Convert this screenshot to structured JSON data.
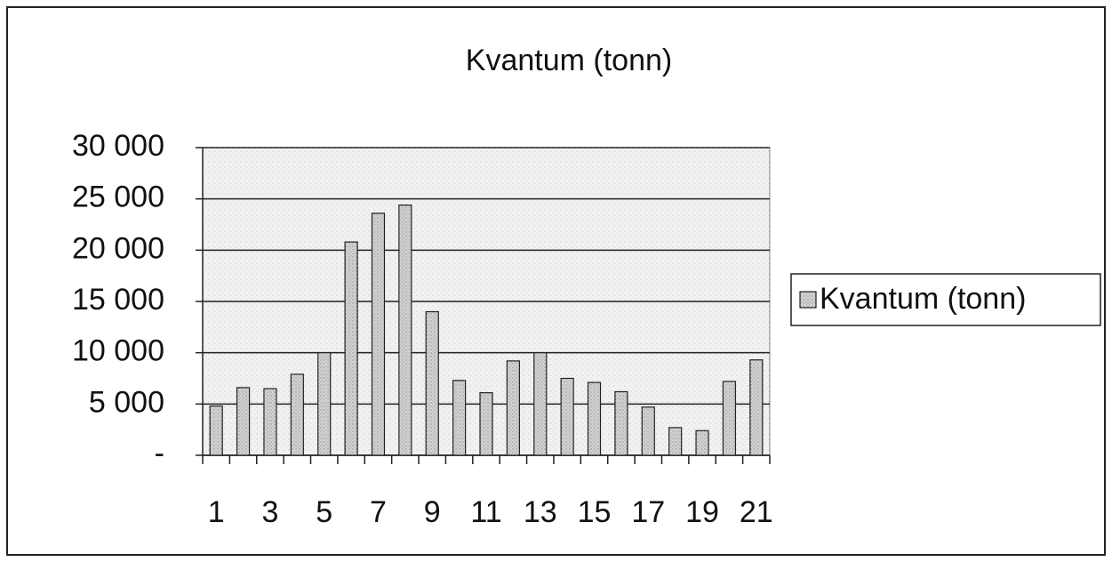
{
  "chart_data": {
    "type": "bar",
    "title": "Kvantum (tonn)",
    "categories": [
      "1",
      null,
      "3",
      null,
      "5",
      null,
      "7",
      null,
      "9",
      null,
      "11",
      null,
      "13",
      null,
      "15",
      null,
      "17",
      null,
      "19",
      null,
      "21"
    ],
    "series": [
      {
        "name": "Kvantum (tonn)",
        "color": "#c9c9c9",
        "values": [
          4800,
          6600,
          6500,
          7900,
          10000,
          20800,
          23600,
          24400,
          14000,
          7300,
          6100,
          9200,
          10000,
          7500,
          7100,
          6200,
          4700,
          2700,
          2400,
          7200,
          9300
        ]
      }
    ],
    "ylim": [
      0,
      30000
    ],
    "yticks": [
      {
        "value": 0,
        "label": "-"
      },
      {
        "value": 5000,
        "label": "5 000"
      },
      {
        "value": 10000,
        "label": "10 000"
      },
      {
        "value": 15000,
        "label": "15 000"
      },
      {
        "value": 20000,
        "label": "20 000"
      },
      {
        "value": 25000,
        "label": "25 000"
      },
      {
        "value": 30000,
        "label": "30 000"
      }
    ],
    "grid": true,
    "legend": "right"
  }
}
